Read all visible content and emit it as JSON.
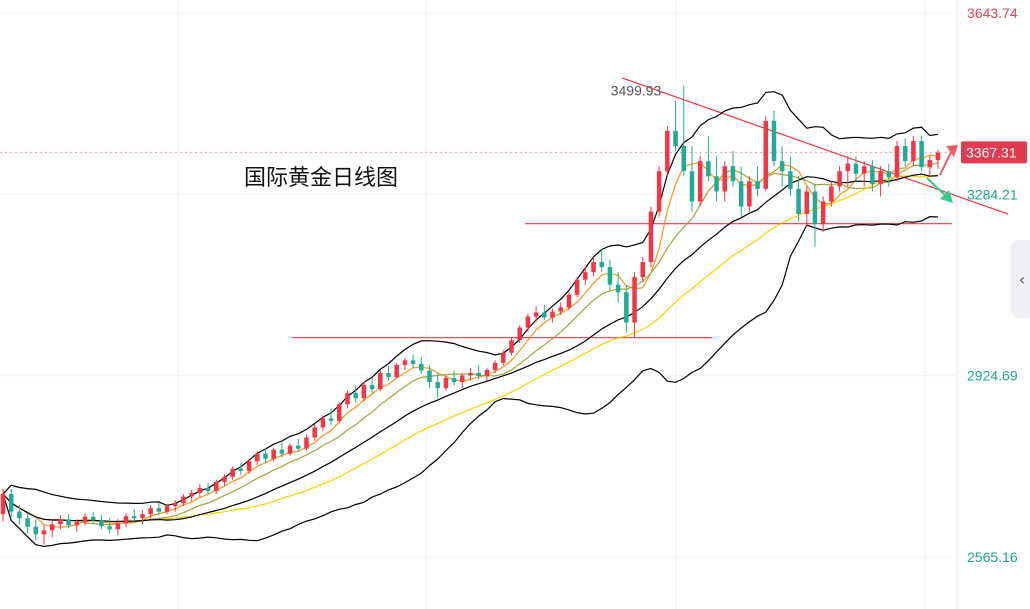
{
  "chart_data": {
    "type": "candlestick",
    "title": "国际黄金日线图",
    "y_axis": {
      "ticks": [
        "3643.74",
        "3284.21",
        "2924.69",
        "2565.16"
      ],
      "min": 2565.16,
      "max": 3643.74
    },
    "high_annotation": "3499.93",
    "current_price": "3367.31",
    "colors": {
      "up": "#f23645",
      "down": "#22ab94",
      "bb": "#000000",
      "ma_fast": "#f7941d",
      "ma_mid": "#a5a33a",
      "ma_slow": "#f5d300",
      "trendline": "#f23645",
      "price_tag": "#e23a4e"
    },
    "levels": {
      "support_upper": 3226,
      "support_lower": 3000
    },
    "trendline": {
      "start": 3515,
      "end": 3245
    },
    "candles": [
      [
        2650,
        2700,
        2635,
        2690
      ],
      [
        2690,
        2700,
        2645,
        2655
      ],
      [
        2655,
        2668,
        2630,
        2642
      ],
      [
        2642,
        2652,
        2612,
        2625
      ],
      [
        2625,
        2640,
        2598,
        2610
      ],
      [
        2610,
        2628,
        2590,
        2618
      ],
      [
        2618,
        2638,
        2604,
        2630
      ],
      [
        2630,
        2648,
        2620,
        2640
      ],
      [
        2640,
        2650,
        2622,
        2628
      ],
      [
        2628,
        2640,
        2615,
        2635
      ],
      [
        2635,
        2652,
        2628,
        2645
      ],
      [
        2645,
        2655,
        2630,
        2638
      ],
      [
        2638,
        2648,
        2620,
        2626
      ],
      [
        2626,
        2642,
        2612,
        2620
      ],
      [
        2620,
        2640,
        2608,
        2632
      ],
      [
        2632,
        2652,
        2624,
        2646
      ],
      [
        2646,
        2660,
        2636,
        2642
      ],
      [
        2642,
        2658,
        2630,
        2650
      ],
      [
        2650,
        2668,
        2642,
        2662
      ],
      [
        2662,
        2672,
        2648,
        2655
      ],
      [
        2655,
        2670,
        2650,
        2666
      ],
      [
        2666,
        2678,
        2655,
        2672
      ],
      [
        2672,
        2690,
        2666,
        2685
      ],
      [
        2685,
        2698,
        2675,
        2692
      ],
      [
        2692,
        2710,
        2684,
        2702
      ],
      [
        2702,
        2712,
        2690,
        2696
      ],
      [
        2696,
        2718,
        2690,
        2714
      ],
      [
        2714,
        2730,
        2706,
        2724
      ],
      [
        2724,
        2745,
        2718,
        2740
      ],
      [
        2740,
        2752,
        2728,
        2736
      ],
      [
        2736,
        2760,
        2730,
        2755
      ],
      [
        2755,
        2775,
        2748,
        2770
      ],
      [
        2770,
        2780,
        2752,
        2760
      ],
      [
        2760,
        2782,
        2755,
        2778
      ],
      [
        2778,
        2792,
        2762,
        2770
      ],
      [
        2770,
        2790,
        2766,
        2786
      ],
      [
        2786,
        2800,
        2774,
        2780
      ],
      [
        2780,
        2808,
        2776,
        2802
      ],
      [
        2802,
        2828,
        2796,
        2822
      ],
      [
        2822,
        2846,
        2816,
        2840
      ],
      [
        2840,
        2860,
        2826,
        2835
      ],
      [
        2835,
        2872,
        2830,
        2868
      ],
      [
        2868,
        2895,
        2860,
        2890
      ],
      [
        2890,
        2905,
        2872,
        2880
      ],
      [
        2880,
        2912,
        2874,
        2906
      ],
      [
        2906,
        2920,
        2890,
        2898
      ],
      [
        2898,
        2935,
        2894,
        2930
      ],
      [
        2930,
        2944,
        2915,
        2922
      ],
      [
        2922,
        2950,
        2918,
        2946
      ],
      [
        2946,
        2960,
        2936,
        2955
      ],
      [
        2955,
        2966,
        2940,
        2948
      ],
      [
        2948,
        2962,
        2928,
        2935
      ],
      [
        2935,
        2945,
        2900,
        2912
      ],
      [
        2912,
        2930,
        2880,
        2900
      ],
      [
        2900,
        2925,
        2895,
        2920
      ],
      [
        2920,
        2935,
        2905,
        2912
      ],
      [
        2912,
        2930,
        2900,
        2925
      ],
      [
        2925,
        2940,
        2915,
        2930
      ],
      [
        2930,
        2945,
        2918,
        2924
      ],
      [
        2924,
        2940,
        2915,
        2936
      ],
      [
        2936,
        2955,
        2930,
        2950
      ],
      [
        2950,
        2975,
        2945,
        2970
      ],
      [
        2970,
        3000,
        2965,
        2995
      ],
      [
        2995,
        3025,
        2990,
        3020
      ],
      [
        3020,
        3048,
        3012,
        3042
      ],
      [
        3042,
        3062,
        3030,
        3050
      ],
      [
        3050,
        3065,
        3035,
        3040
      ],
      [
        3040,
        3058,
        3030,
        3052
      ],
      [
        3052,
        3070,
        3045,
        3060
      ],
      [
        3060,
        3090,
        3055,
        3085
      ],
      [
        3085,
        3120,
        3080,
        3115
      ],
      [
        3115,
        3140,
        3105,
        3130
      ],
      [
        3130,
        3160,
        3122,
        3150
      ],
      [
        3150,
        3175,
        3130,
        3140
      ],
      [
        3140,
        3155,
        3095,
        3105
      ],
      [
        3105,
        3130,
        3070,
        3090
      ],
      [
        3090,
        3105,
        3010,
        3030
      ],
      [
        3030,
        3130,
        3000,
        3120
      ],
      [
        3120,
        3160,
        3110,
        3150
      ],
      [
        3150,
        3260,
        3140,
        3250
      ],
      [
        3250,
        3340,
        3240,
        3330
      ],
      [
        3330,
        3420,
        3320,
        3410
      ],
      [
        3410,
        3470,
        3370,
        3380
      ],
      [
        3380,
        3500,
        3320,
        3330
      ],
      [
        3330,
        3380,
        3250,
        3270
      ],
      [
        3270,
        3360,
        3260,
        3350
      ],
      [
        3350,
        3400,
        3310,
        3320
      ],
      [
        3320,
        3360,
        3270,
        3290
      ],
      [
        3290,
        3350,
        3270,
        3340
      ],
      [
        3340,
        3370,
        3300,
        3310
      ],
      [
        3310,
        3340,
        3240,
        3260
      ],
      [
        3260,
        3320,
        3250,
        3310
      ],
      [
        3310,
        3340,
        3280,
        3295
      ],
      [
        3295,
        3440,
        3290,
        3430
      ],
      [
        3430,
        3450,
        3340,
        3350
      ],
      [
        3350,
        3380,
        3300,
        3330
      ],
      [
        3330,
        3360,
        3280,
        3295
      ],
      [
        3295,
        3320,
        3230,
        3245
      ],
      [
        3245,
        3300,
        3220,
        3290
      ],
      [
        3290,
        3305,
        3180,
        3225
      ],
      [
        3225,
        3280,
        3210,
        3270
      ],
      [
        3270,
        3310,
        3260,
        3300
      ],
      [
        3300,
        3340,
        3290,
        3330
      ],
      [
        3330,
        3360,
        3300,
        3345
      ],
      [
        3345,
        3360,
        3310,
        3325
      ],
      [
        3325,
        3350,
        3300,
        3340
      ],
      [
        3340,
        3352,
        3290,
        3305
      ],
      [
        3305,
        3340,
        3280,
        3330
      ],
      [
        3330,
        3345,
        3300,
        3318
      ],
      [
        3318,
        3390,
        3310,
        3380
      ],
      [
        3380,
        3395,
        3340,
        3350
      ],
      [
        3350,
        3400,
        3340,
        3390
      ],
      [
        3390,
        3400,
        3330,
        3338
      ],
      [
        3338,
        3360,
        3320,
        3352
      ],
      [
        3352,
        3372,
        3335,
        3367
      ]
    ]
  }
}
